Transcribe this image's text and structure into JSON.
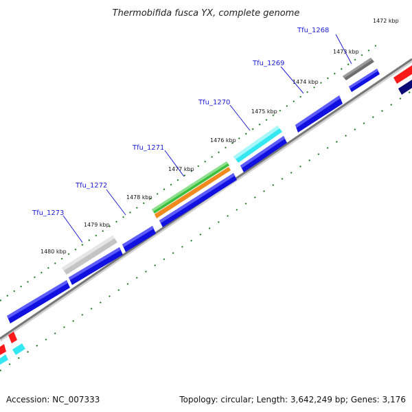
{
  "title": "Thermobifida fusca YX, complete genome",
  "footer": {
    "accession": "Accession: NC_007333",
    "summary": "Topology: circular; Length: 3,642,249 bp; Genes: 3,176"
  },
  "ticks": [
    "1472 kbp",
    "1473 kbp",
    "1474 kbp",
    "1475 kbp",
    "1476 kbp",
    "1477 kbp",
    "1478 kbp",
    "1479 kbp",
    "1480 kbp"
  ],
  "genes": [
    "Tfu_1268",
    "Tfu_1269",
    "Tfu_1270",
    "Tfu_1271",
    "Tfu_1272",
    "Tfu_1273"
  ],
  "colors": {
    "blue": "#1010e0",
    "dark_gray": "#6e6e6e",
    "cyan": "#33e8f0",
    "green": "#3cbf3c",
    "orange": "#f08a1e",
    "light_gray": "#c4c4c4",
    "red": "#ff1a1a",
    "navy": "#0b0b78",
    "ruler": "#1a7a1a",
    "backbone": "#777777",
    "label_blue": "#1a1ad6"
  }
}
